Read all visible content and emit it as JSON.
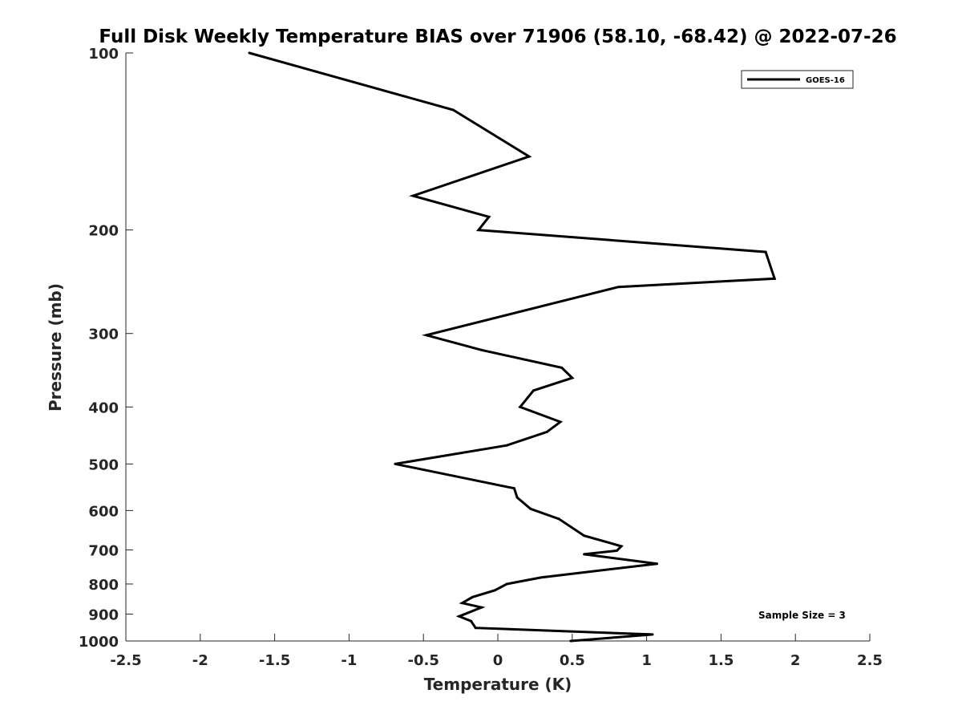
{
  "chart_data": {
    "type": "line",
    "title": "Full Disk Weekly Temperature BIAS over 71906 (58.10, -68.42) @ 2022-07-26",
    "xlabel": "Temperature (K)",
    "ylabel": "Pressure (mb)",
    "xlim": [
      -2.5,
      2.5
    ],
    "ylim": [
      100,
      1000
    ],
    "yscale": "log",
    "y_reversed": true,
    "grid": false,
    "legend_position": "top-right",
    "x_ticks": [
      -2.5,
      -2,
      -1.5,
      -1,
      -0.5,
      0,
      0.5,
      1,
      1.5,
      2,
      2.5
    ],
    "x_tick_labels": [
      "-2.5",
      "-2",
      "-1.5",
      "-1",
      "-0.5",
      "0",
      "0.5",
      "1",
      "1.5",
      "2",
      "2.5"
    ],
    "y_ticks": [
      100,
      200,
      300,
      400,
      500,
      600,
      700,
      800,
      900,
      1000
    ],
    "y_tick_labels": [
      "100",
      "200",
      "300",
      "400",
      "500",
      "600",
      "700",
      "800",
      "900",
      "1000"
    ],
    "series": [
      {
        "name": "GOES-16",
        "color": "#000000",
        "points": [
          {
            "x": -1.67,
            "y": 100
          },
          {
            "x": -0.3,
            "y": 125
          },
          {
            "x": 0.21,
            "y": 150
          },
          {
            "x": -0.57,
            "y": 175
          },
          {
            "x": -0.06,
            "y": 190
          },
          {
            "x": -0.13,
            "y": 200
          },
          {
            "x": 1.8,
            "y": 218
          },
          {
            "x": 1.86,
            "y": 242
          },
          {
            "x": 0.81,
            "y": 250
          },
          {
            "x": -0.48,
            "y": 302
          },
          {
            "x": -0.11,
            "y": 320
          },
          {
            "x": 0.43,
            "y": 343
          },
          {
            "x": 0.5,
            "y": 357
          },
          {
            "x": 0.24,
            "y": 375
          },
          {
            "x": 0.15,
            "y": 400
          },
          {
            "x": 0.42,
            "y": 424
          },
          {
            "x": 0.33,
            "y": 441
          },
          {
            "x": 0.06,
            "y": 465
          },
          {
            "x": -0.69,
            "y": 500
          },
          {
            "x": 0.11,
            "y": 550
          },
          {
            "x": 0.13,
            "y": 570
          },
          {
            "x": 0.22,
            "y": 596
          },
          {
            "x": 0.41,
            "y": 620
          },
          {
            "x": 0.58,
            "y": 662
          },
          {
            "x": 0.83,
            "y": 690
          },
          {
            "x": 0.8,
            "y": 702
          },
          {
            "x": 0.58,
            "y": 712
          },
          {
            "x": 1.07,
            "y": 739
          },
          {
            "x": 0.29,
            "y": 780
          },
          {
            "x": 0.06,
            "y": 800
          },
          {
            "x": -0.02,
            "y": 820
          },
          {
            "x": -0.17,
            "y": 842
          },
          {
            "x": -0.24,
            "y": 862
          },
          {
            "x": -0.11,
            "y": 877
          },
          {
            "x": -0.26,
            "y": 908
          },
          {
            "x": -0.18,
            "y": 925
          },
          {
            "x": -0.15,
            "y": 950
          },
          {
            "x": 1.04,
            "y": 975
          },
          {
            "x": 0.49,
            "y": 1000
          }
        ]
      }
    ],
    "annotations": [
      {
        "text": "Sample Size = 3",
        "position": "bottom-right"
      }
    ]
  }
}
